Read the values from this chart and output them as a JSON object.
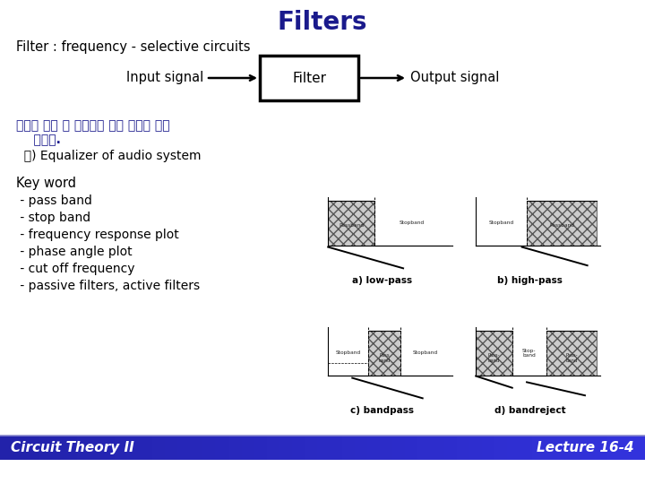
{
  "title": "Filters",
  "title_color": "#1a1a8c",
  "title_fontsize": 20,
  "subtitle": "Filter : frequency - selective circuits",
  "subtitle_fontsize": 10.5,
  "block_label": "Filter",
  "input_label": "Input signal",
  "output_label": "Output signal",
  "korean_text1": "원하는 영역 밖 주파수의 입력 신호를 소몝",
  "korean_text2": "    시킨다.",
  "example_text": "  예) Equalizer of audio system",
  "keyword_title": "Key word",
  "keywords": [
    " - pass band",
    " - stop band",
    " - frequency response plot",
    " - phase angle plot",
    " - cut off frequency",
    " - passive filters, active filters"
  ],
  "filter_labels": [
    "a) low-pass",
    "b) high-pass",
    "c) bandpass",
    "d) bandreject"
  ],
  "bottom_left": "Circuit Theory II",
  "bottom_right": "Lecture 16-4",
  "background_color": "#ffffff"
}
